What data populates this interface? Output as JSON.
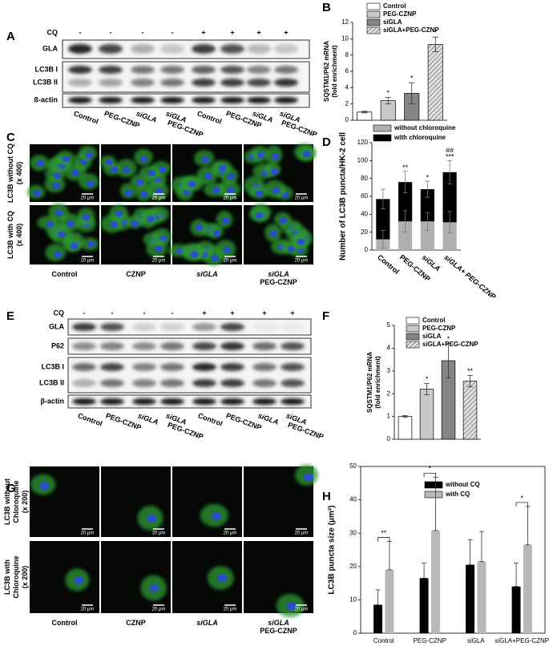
{
  "figure_a": {
    "panel": "A",
    "treatment_label": "CQ",
    "treatments": [
      "-",
      "-",
      "-",
      "-",
      "+",
      "+",
      "+",
      "+"
    ],
    "rows": [
      "GLA",
      "LC3B I",
      "LC3B II",
      "ß-actin"
    ],
    "lanes": [
      [
        "Control"
      ],
      [
        "PEG-CZNP"
      ],
      [
        "siGLA"
      ],
      [
        "siGLA",
        "PEG-CZNP"
      ],
      [
        "Control"
      ],
      [
        "PEG-CZNP"
      ],
      [
        "siGLA"
      ],
      [
        "siGLA",
        "PEG-CZNP"
      ]
    ]
  },
  "figure_c": {
    "panel": "C",
    "rows": [
      [
        "LC3B without CQ",
        "(x 400)"
      ],
      [
        "LC3B with CQ",
        "(x 400)"
      ]
    ],
    "columns": [
      [
        "Control"
      ],
      [
        "CZNP"
      ],
      [
        "siGLA"
      ],
      [
        "siGLA",
        "PEG-CZNP"
      ]
    ],
    "scale_bar": "20 μm"
  },
  "figure_e": {
    "panel": "E",
    "treatment_label": "CQ",
    "treatments": [
      "-",
      "-",
      "-",
      "-",
      "+",
      "+",
      "+",
      "+"
    ],
    "rows": [
      "GLA",
      "P62",
      "LC3B I",
      "LC3B II",
      "β-actin"
    ],
    "lanes": [
      [
        "Control"
      ],
      [
        "PEG-CZNP"
      ],
      [
        "siGLA"
      ],
      [
        "siGLA",
        "PEG-CZNP"
      ],
      [
        "Control"
      ],
      [
        "PEG-CZNP"
      ],
      [
        "siGLA"
      ],
      [
        "siGLA",
        "PEG-CZNP"
      ]
    ]
  },
  "figure_g": {
    "panel": "G",
    "rows": [
      [
        "LC3B without",
        "Chloroquine",
        "(x 200)"
      ],
      [
        "LC3B with",
        "Chloroquine",
        "(x 200)"
      ]
    ],
    "columns": [
      [
        "Control"
      ],
      [
        "CZNP"
      ],
      [
        "siGLA"
      ],
      [
        "siGLA",
        "PEG-CZNP"
      ]
    ],
    "scale_bar": "20 μm"
  },
  "chart_data": [
    {
      "type": "bar",
      "panel": "B",
      "ylabel": [
        "SQSTM1/P62 mRNA",
        "(fold enrichment)"
      ],
      "categories": [
        "Control",
        "PEG-CZNP",
        "siGLA",
        "siGLA+PEG-CZNP"
      ],
      "values": [
        1.0,
        2.4,
        3.3,
        9.3
      ],
      "errors": [
        0.1,
        0.4,
        1.3,
        0.9
      ],
      "colors": [
        "#ffffff",
        "#c8c8c8",
        "#858585",
        "#d8d8d8"
      ],
      "hatched": [
        false,
        false,
        false,
        true
      ],
      "annotations": [
        {
          "index": 1,
          "text": "*"
        },
        {
          "index": 2,
          "text": "*"
        },
        {
          "index": 3,
          "text": "*"
        }
      ],
      "ylim": [
        0,
        12
      ],
      "yticks": [
        0,
        2,
        4,
        6,
        8,
        10,
        12
      ],
      "legend": "top"
    },
    {
      "type": "stacked_bar",
      "panel": "D",
      "ylabel": "Number of LC3B puncta/HK-2 cell",
      "categories": [
        "Control",
        "PEG-CZNP",
        "siGLA",
        "siGLA+ PEG-CZNP"
      ],
      "series": [
        {
          "name": "without chloroquine",
          "color": "#b0b0b0",
          "values": [
            12,
            32,
            32,
            31
          ],
          "errors": [
            10,
            12,
            10,
            12
          ]
        },
        {
          "name": "with chloroquine",
          "color": "#000000",
          "values": [
            45,
            44,
            36,
            56
          ],
          "errors": [
            11,
            12,
            9,
            13
          ]
        }
      ],
      "annotations": [
        {
          "index": 1,
          "text": "**"
        },
        {
          "index": 2,
          "text": "*"
        },
        {
          "index": 3,
          "text": "***"
        },
        {
          "index": 3,
          "text": "##"
        }
      ],
      "ylim": [
        0,
        120
      ],
      "yticks": [
        0,
        20,
        40,
        60,
        80,
        100,
        120
      ],
      "legend": "top"
    },
    {
      "type": "bar",
      "panel": "F",
      "ylabel": [
        "SQSTM1/P62 mRNA",
        "(fold enrichment)"
      ],
      "categories": [
        "Control",
        "PEG-CZNP",
        "siGLA",
        "siGLA+PEG-CZNP"
      ],
      "values": [
        1.0,
        2.2,
        3.45,
        2.55
      ],
      "errors": [
        0.04,
        0.25,
        0.75,
        0.25
      ],
      "colors": [
        "#ffffff",
        "#c8c8c8",
        "#858585",
        "#d8d8d8"
      ],
      "hatched": [
        false,
        false,
        false,
        true
      ],
      "annotations": [
        {
          "index": 1,
          "text": "*"
        },
        {
          "index": 2,
          "text": "*"
        },
        {
          "index": 3,
          "text": "**"
        }
      ],
      "ylim": [
        0,
        5
      ],
      "yticks": [
        0,
        1,
        2,
        3,
        4,
        5
      ],
      "legend": "top"
    },
    {
      "type": "grouped_bar",
      "panel": "H",
      "ylabel": "LC3B puncta size (μm²)",
      "categories": [
        "Control",
        "PEG-CZNP",
        "siGLA",
        "siGLA+PEG-CZNP"
      ],
      "series": [
        {
          "name": "without CQ",
          "color": "#000000",
          "values": [
            8.5,
            16.5,
            20.5,
            14
          ],
          "errors": [
            4.5,
            4.5,
            7.5,
            7
          ]
        },
        {
          "name": "with CQ",
          "color": "#b8b8b8",
          "values": [
            19,
            30.8,
            21.5,
            26.5
          ],
          "errors": [
            8.5,
            16,
            9,
            11.5
          ]
        }
      ],
      "annotations": [
        {
          "index": 0,
          "text": "**"
        },
        {
          "index": 1,
          "text": "*"
        },
        {
          "index": 3,
          "text": "*"
        }
      ],
      "ylim": [
        0,
        50
      ],
      "yticks": [
        0,
        10,
        20,
        30,
        40,
        50
      ],
      "legend": "top-right"
    }
  ]
}
